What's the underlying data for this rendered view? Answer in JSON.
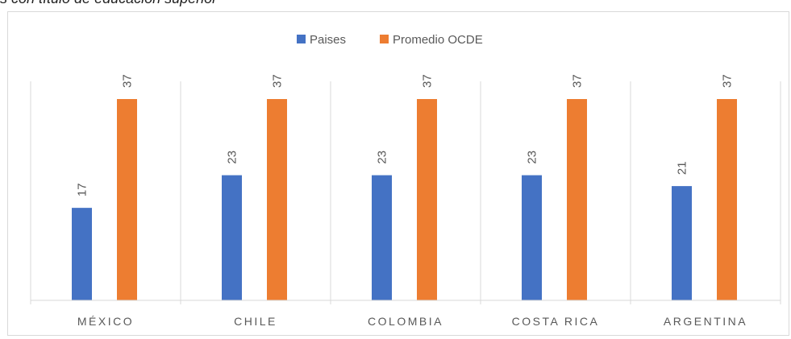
{
  "caption": "s con título de educación superior",
  "chart_data": {
    "type": "bar",
    "categories": [
      "MÉXICO",
      "CHILE",
      "COLOMBIA",
      "COSTA RICA",
      "ARGENTINA"
    ],
    "series": [
      {
        "name": "Paises",
        "values": [
          17,
          23,
          23,
          23,
          21
        ],
        "color": "#4472C4"
      },
      {
        "name": "Promedio OCDE",
        "values": [
          37,
          37,
          37,
          37,
          37
        ],
        "color": "#ED7D31"
      }
    ],
    "ylim": [
      0,
      40
    ],
    "grid": false,
    "legend_position": "top",
    "data_labels": true,
    "title": "",
    "xlabel": "",
    "ylabel": ""
  }
}
